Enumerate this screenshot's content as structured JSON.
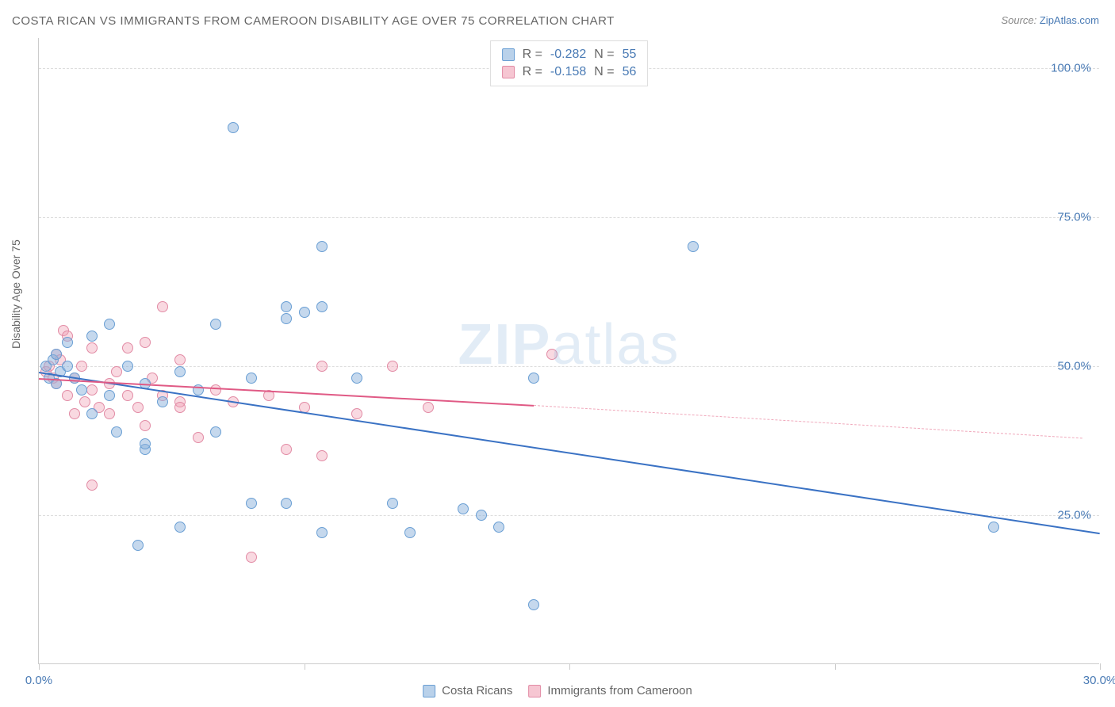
{
  "title": "COSTA RICAN VS IMMIGRANTS FROM CAMEROON DISABILITY AGE OVER 75 CORRELATION CHART",
  "source_label": "Source: ",
  "source_link": "ZipAtlas.com",
  "ylabel": "Disability Age Over 75",
  "watermark_bold": "ZIP",
  "watermark_light": "atlas",
  "chart": {
    "type": "scatter",
    "xlim": [
      0,
      30
    ],
    "ylim": [
      0,
      105
    ],
    "background_color": "#ffffff",
    "grid_color": "#dddddd",
    "axis_color": "#cccccc",
    "tick_label_color": "#4a7bb5",
    "label_color": "#666666",
    "xtick_positions": [
      0,
      7.5,
      15,
      22.5,
      30
    ],
    "xtick_labels": {
      "0": "0.0%",
      "30": "30.0%"
    },
    "ytick_positions": [
      25,
      50,
      75,
      100
    ],
    "ytick_labels": {
      "25": "25.0%",
      "50": "50.0%",
      "75": "75.0%",
      "100": "100.0%"
    },
    "series": {
      "blue": {
        "name": "Costa Ricans",
        "fill_color": "rgba(139,178,220,0.5)",
        "stroke_color": "#6a9fd4",
        "trend_color": "#3a72c4",
        "R": "-0.282",
        "N": "55",
        "trend_start": [
          0,
          49
        ],
        "trend_end": [
          30,
          22
        ],
        "points": [
          [
            0.2,
            50
          ],
          [
            0.3,
            48
          ],
          [
            0.4,
            51
          ],
          [
            0.5,
            47
          ],
          [
            0.5,
            52
          ],
          [
            0.6,
            49
          ],
          [
            0.8,
            50
          ],
          [
            0.8,
            54
          ],
          [
            1.0,
            48
          ],
          [
            1.2,
            46
          ],
          [
            1.5,
            55
          ],
          [
            1.5,
            42
          ],
          [
            2.0,
            57
          ],
          [
            2.0,
            45
          ],
          [
            2.2,
            39
          ],
          [
            2.5,
            50
          ],
          [
            2.8,
            20
          ],
          [
            3.0,
            47
          ],
          [
            3.0,
            36
          ],
          [
            3.0,
            37
          ],
          [
            3.5,
            44
          ],
          [
            4.0,
            49
          ],
          [
            4.0,
            23
          ],
          [
            4.5,
            46
          ],
          [
            5.0,
            57
          ],
          [
            5.0,
            39
          ],
          [
            5.5,
            90
          ],
          [
            6.0,
            27
          ],
          [
            6.0,
            48
          ],
          [
            7.0,
            58
          ],
          [
            7.0,
            60
          ],
          [
            7.0,
            27
          ],
          [
            7.5,
            59
          ],
          [
            8.0,
            70
          ],
          [
            8.0,
            22
          ],
          [
            8.0,
            60
          ],
          [
            9.0,
            48
          ],
          [
            10.0,
            27
          ],
          [
            10.5,
            22
          ],
          [
            12.0,
            26
          ],
          [
            12.5,
            25
          ],
          [
            13.0,
            23
          ],
          [
            14.0,
            10
          ],
          [
            14.0,
            48
          ],
          [
            18.5,
            70
          ],
          [
            27.0,
            23
          ]
        ]
      },
      "pink": {
        "name": "Immigrants from Cameroon",
        "fill_color": "rgba(240,160,180,0.4)",
        "stroke_color": "#e28ba5",
        "trend_color": "#e05a85",
        "dash_color": "#f0a8bb",
        "R": "-0.158",
        "N": "56",
        "trend_start": [
          0,
          48
        ],
        "trend_solid_end": [
          14,
          43.5
        ],
        "trend_end": [
          29.5,
          38
        ],
        "points": [
          [
            0.2,
            49
          ],
          [
            0.3,
            50
          ],
          [
            0.4,
            48
          ],
          [
            0.5,
            52
          ],
          [
            0.5,
            47
          ],
          [
            0.6,
            51
          ],
          [
            0.7,
            56
          ],
          [
            0.8,
            45
          ],
          [
            0.8,
            55
          ],
          [
            1.0,
            48
          ],
          [
            1.0,
            42
          ],
          [
            1.2,
            50
          ],
          [
            1.3,
            44
          ],
          [
            1.5,
            46
          ],
          [
            1.5,
            30
          ],
          [
            1.5,
            53
          ],
          [
            1.7,
            43
          ],
          [
            2.0,
            47
          ],
          [
            2.0,
            42
          ],
          [
            2.2,
            49
          ],
          [
            2.5,
            45
          ],
          [
            2.5,
            53
          ],
          [
            2.8,
            43
          ],
          [
            3.0,
            40
          ],
          [
            3.0,
            54
          ],
          [
            3.2,
            48
          ],
          [
            3.5,
            45
          ],
          [
            3.5,
            60
          ],
          [
            4.0,
            44
          ],
          [
            4.0,
            51
          ],
          [
            4.0,
            43
          ],
          [
            4.5,
            38
          ],
          [
            5.0,
            46
          ],
          [
            5.5,
            44
          ],
          [
            6.0,
            18
          ],
          [
            6.5,
            45
          ],
          [
            7.0,
            36
          ],
          [
            7.5,
            43
          ],
          [
            8.0,
            35
          ],
          [
            8.0,
            50
          ],
          [
            9.0,
            42
          ],
          [
            10.0,
            50
          ],
          [
            11.0,
            43
          ],
          [
            14.5,
            52
          ]
        ]
      }
    }
  },
  "stats_labels": {
    "R": "R =",
    "N": "N ="
  },
  "legend": {
    "blue": "Costa Ricans",
    "pink": "Immigrants from Cameroon"
  }
}
